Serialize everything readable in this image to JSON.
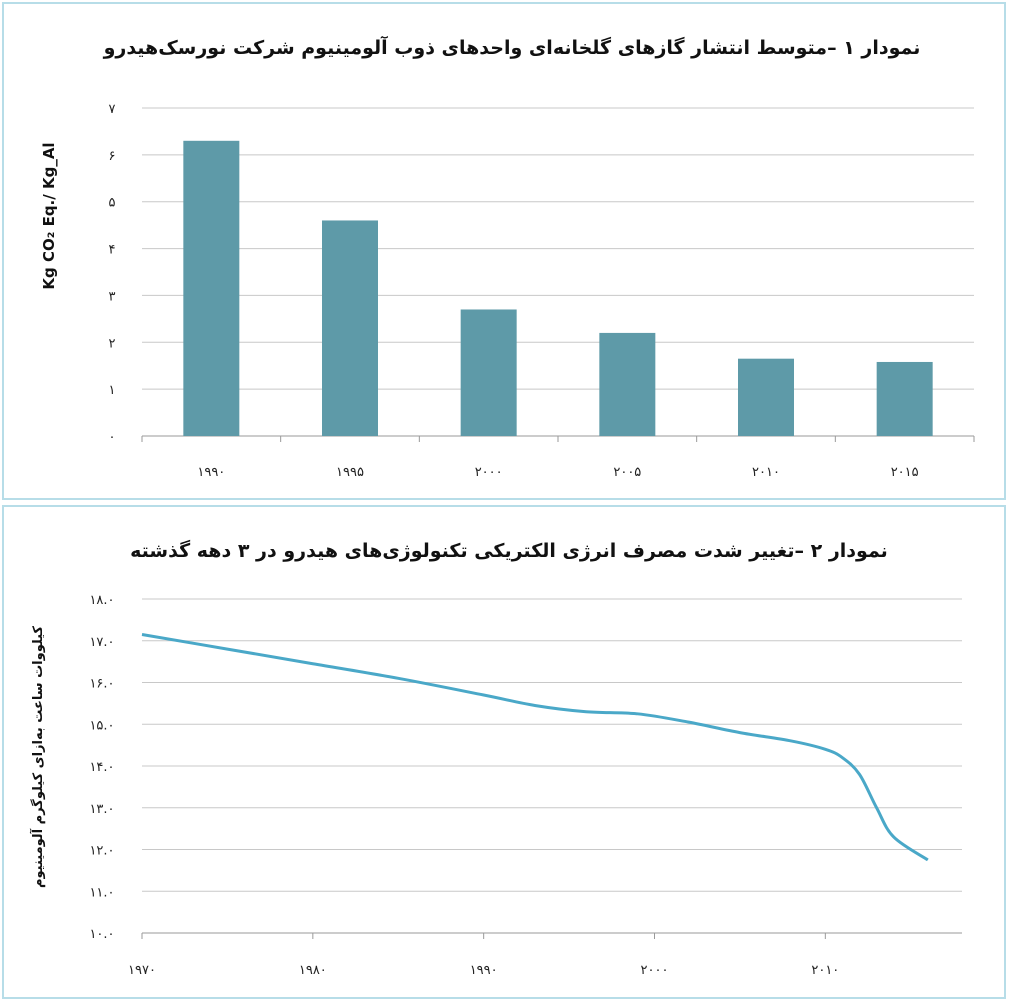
{
  "chart_data": [
    {
      "type": "bar",
      "title": "نمودار ۱ –متوسط انتشار گازهای گلخانه‌ای واحدهای ذوب آلومینیوم شرکت نورسک‌هیدرو",
      "ylabel": "Kg CO₂ Eq./ Kg_Al",
      "xlabel": "",
      "categories": [
        "۱۹۹۰",
        "۱۹۹۵",
        "۲۰۰۰",
        "۲۰۰۵",
        "۲۰۱۰",
        "۲۰۱۵"
      ],
      "values": [
        6.3,
        4.6,
        2.7,
        2.2,
        1.65,
        1.58
      ],
      "ylim": [
        0,
        7
      ],
      "yticks": [
        0,
        1,
        2,
        3,
        4,
        5,
        6,
        7
      ],
      "ytick_labels": [
        "۰",
        "۱",
        "۲",
        "۳",
        "۴",
        "۵",
        "۶",
        "۷"
      ],
      "grid": true,
      "bar_color": "#5e9aa8"
    },
    {
      "type": "line",
      "title": "نمودار ۲ –تغییر شدت مصرف انرژی الکتریکی تکنولوژی‌های هیدرو در ۳ دهه گذشته",
      "ylabel": "کیلووات ساعت به‌ازای کیلوگرم آلومینیوم",
      "xlabel": "",
      "x": [
        1970,
        1975,
        1980,
        1985,
        1990,
        1993,
        1996,
        1999,
        2002,
        2005,
        2008,
        2010,
        2011,
        2012,
        2013,
        2014,
        2016
      ],
      "y": [
        17.15,
        16.8,
        16.45,
        16.1,
        15.7,
        15.45,
        15.3,
        15.25,
        15.05,
        14.8,
        14.6,
        14.4,
        14.2,
        13.8,
        13.0,
        12.3,
        11.75
      ],
      "xlim": [
        1970,
        2018
      ],
      "ylim": [
        10,
        18
      ],
      "xticks": [
        1970,
        1980,
        1990,
        2000,
        2010
      ],
      "xtick_labels": [
        "۱۹۷۰",
        "۱۹۸۰",
        "۱۹۹۰",
        "۲۰۰۰",
        "۲۰۱۰"
      ],
      "yticks": [
        10,
        11,
        12,
        13,
        14,
        15,
        16,
        17,
        18
      ],
      "ytick_labels": [
        "۱۰.۰",
        "۱۱.۰",
        "۱۲.۰",
        "۱۳.۰",
        "۱۴.۰",
        "۱۵.۰",
        "۱۶.۰",
        "۱۷.۰",
        "۱۸.۰"
      ],
      "grid": true,
      "line_color": "#4aa8c8"
    }
  ]
}
